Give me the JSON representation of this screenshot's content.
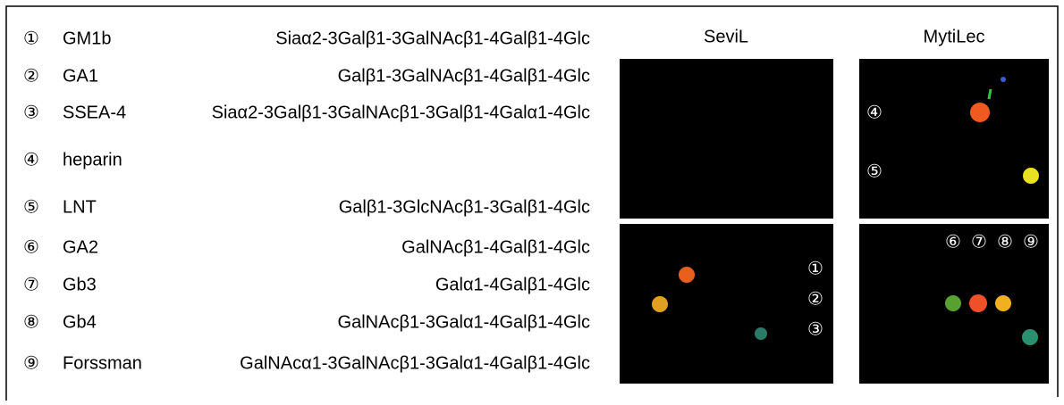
{
  "rows": [
    {
      "num": "①",
      "name": "GM1b",
      "structure": "Siaα2-3Galβ1-3GalNAcβ1-4Galβ1-4Glc"
    },
    {
      "num": "②",
      "name": "GA1",
      "structure": "Galβ1-3GalNAcβ1-4Galβ1-4Glc"
    },
    {
      "num": "③",
      "name": "SSEA-4",
      "structure": "Siaα2-3Galβ1-3GalNAcβ1-3Galβ1-4Galα1-4Glc"
    },
    {
      "num": "④",
      "name": "heparin"
    },
    {
      "num": "⑤",
      "name": "LNT",
      "structure": "Galβ1-3GlcNAcβ1-3Galβ1-4Glc"
    },
    {
      "num": "⑥",
      "name": "GA2",
      "structure": "GalNAcβ1-4Galβ1-4Glc"
    },
    {
      "num": "⑦",
      "name": "Gb3",
      "structure": "Galα1-4Galβ1-4Glc"
    },
    {
      "num": "⑧",
      "name": "Gb4",
      "structure": "GalNAcβ1-3Galα1-4Galβ1-4Glc"
    },
    {
      "num": "⑨",
      "name": "Forssman",
      "structure": "GalNAcα1-3GalNAcβ1-3Galα1-4Galβ1-4Glc"
    }
  ],
  "panels": {
    "sevil": {
      "title": "SeviL",
      "labels": [
        "①",
        "②",
        "③"
      ]
    },
    "mytilec": {
      "title": "MytiLec",
      "top_labels": [
        "④",
        "⑤"
      ],
      "bottom_labels": [
        "⑥",
        "⑦",
        "⑧",
        "⑨"
      ]
    }
  }
}
